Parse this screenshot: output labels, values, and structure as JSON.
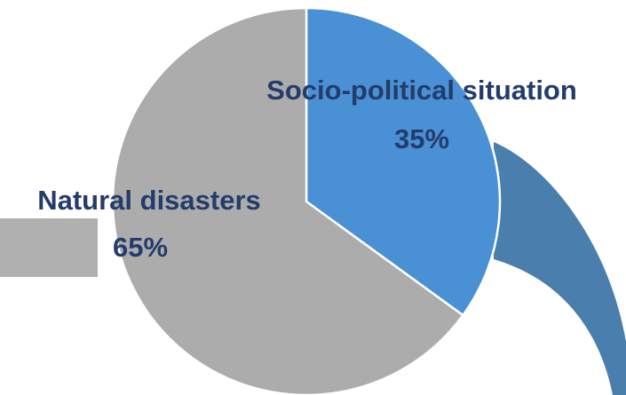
{
  "chart_data": {
    "type": "pie",
    "title": "",
    "slices": [
      {
        "label": "Socio-political situation",
        "value": 35,
        "value_label": "35%",
        "color": "#4a90d4"
      },
      {
        "label": "Natural disasters",
        "value": 65,
        "value_label": "65%",
        "color": "#acacac"
      }
    ],
    "start": "12 o'clock",
    "direction": "clockwise",
    "label_color": "#243c6c",
    "slice_border_color": "#ffffff",
    "decoration_colors": {
      "gray_bar": "#b0b0b0",
      "blue_curve": "#4a7ead"
    }
  }
}
